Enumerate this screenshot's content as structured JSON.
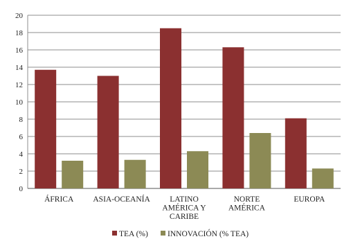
{
  "chart_data": {
    "type": "bar",
    "title": "",
    "xlabel": "",
    "ylabel": "",
    "ylim": [
      0,
      20
    ],
    "yticks": [
      0,
      2,
      4,
      6,
      8,
      10,
      12,
      14,
      16,
      18,
      20
    ],
    "grid": true,
    "legend_position": "bottom",
    "categories": [
      [
        "ÁFRICA"
      ],
      [
        "ASIA-OCEANÍA"
      ],
      [
        "LATINO",
        "AMÉRICA Y",
        "CARIBE"
      ],
      [
        "NORTE",
        "AMÉRICA"
      ],
      [
        "EUROPA"
      ]
    ],
    "series": [
      {
        "name": "TEA (%)",
        "color": "#8B3030",
        "values": [
          13.7,
          13.0,
          18.5,
          16.3,
          8.1
        ]
      },
      {
        "name": "INNOVACIÓN (% TEA)",
        "color": "#8C8A55",
        "values": [
          3.2,
          3.3,
          4.3,
          6.4,
          2.3
        ]
      }
    ]
  }
}
